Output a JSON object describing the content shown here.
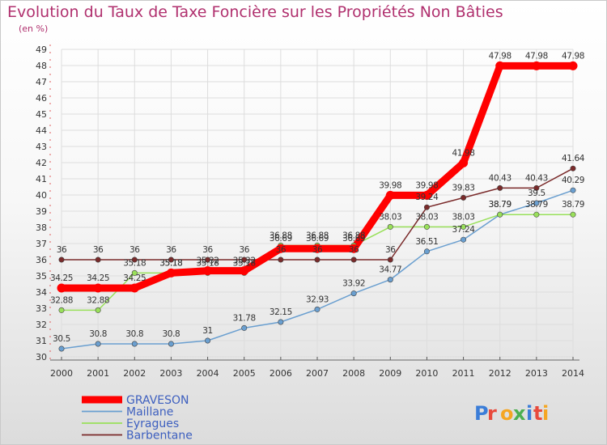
{
  "title": "Evolution du Taux de Taxe Foncière sur les Propriétés Non Bâties",
  "unit_label": "(en %)",
  "brand": "Proxiti",
  "chart_data": {
    "type": "line",
    "x": [
      "2000",
      "2001",
      "2002",
      "2003",
      "2004",
      "2005",
      "2006",
      "2007",
      "2008",
      "2009",
      "2010",
      "2011",
      "2012",
      "2013",
      "2014"
    ],
    "ylim": [
      30,
      49
    ],
    "y_ticks": [
      "30",
      "31",
      "32",
      "33",
      "34",
      "35",
      "36",
      "37",
      "38",
      "39",
      "40",
      "41",
      "42",
      "43",
      "44",
      "45",
      "46",
      "47",
      "48",
      "49"
    ],
    "grid": true,
    "legend_position": "bottom-left",
    "series": [
      {
        "name": "GRAVESON",
        "color": "#ff0000",
        "width": 9,
        "values": [
          34.25,
          34.25,
          34.25,
          35.18,
          35.32,
          35.32,
          36.69,
          36.69,
          36.69,
          39.98,
          39.98,
          41.98,
          47.98,
          47.98,
          47.98
        ],
        "labels": [
          "34.25",
          "34.25",
          "34.25",
          "35.18",
          "35.32",
          "35.32",
          "36.69",
          "36.69",
          "36.69",
          "39.98",
          "39.98",
          "41.98",
          "47.98",
          "47.98",
          "47.98"
        ]
      },
      {
        "name": "Maillane",
        "color": "#6a9fd0",
        "width": 1.5,
        "values": [
          30.5,
          30.8,
          30.8,
          30.8,
          31,
          31.78,
          32.15,
          32.93,
          33.92,
          34.77,
          36.51,
          37.24,
          38.79,
          39.5,
          40.29
        ],
        "labels": [
          "30.5",
          "30.8",
          "30.8",
          "30.8",
          "31",
          "31.78",
          "32.15",
          "32.93",
          "33.92",
          "34.77",
          "36.51",
          "37.24",
          "38.79",
          "39.5",
          "40.29"
        ]
      },
      {
        "name": "Eyragues",
        "color": "#99e05a",
        "width": 1.5,
        "values": [
          32.88,
          32.88,
          35.18,
          35.18,
          35.18,
          35.18,
          36.88,
          36.88,
          36.88,
          38.03,
          38.03,
          38.03,
          38.79,
          38.79,
          38.79
        ],
        "labels": [
          "32.88",
          "32.88",
          "35.18",
          "35.18",
          "35.18",
          "35.18",
          "36.88",
          "36.88",
          "36.88",
          "38.03",
          "38.03",
          "38.03",
          "38.79",
          "38.79",
          "38.79"
        ]
      },
      {
        "name": "Barbentane",
        "color": "#7a2a2a",
        "width": 1.5,
        "values": [
          36,
          36,
          36,
          36,
          36,
          36,
          36,
          36,
          36,
          36,
          39.24,
          39.83,
          40.43,
          40.43,
          41.64
        ],
        "labels": [
          "36",
          "36",
          "36",
          "36",
          "36",
          "36",
          "36",
          "36",
          "36",
          "36",
          "39.24",
          "39.83",
          "40.43",
          "40.43",
          "41.64"
        ]
      }
    ]
  }
}
